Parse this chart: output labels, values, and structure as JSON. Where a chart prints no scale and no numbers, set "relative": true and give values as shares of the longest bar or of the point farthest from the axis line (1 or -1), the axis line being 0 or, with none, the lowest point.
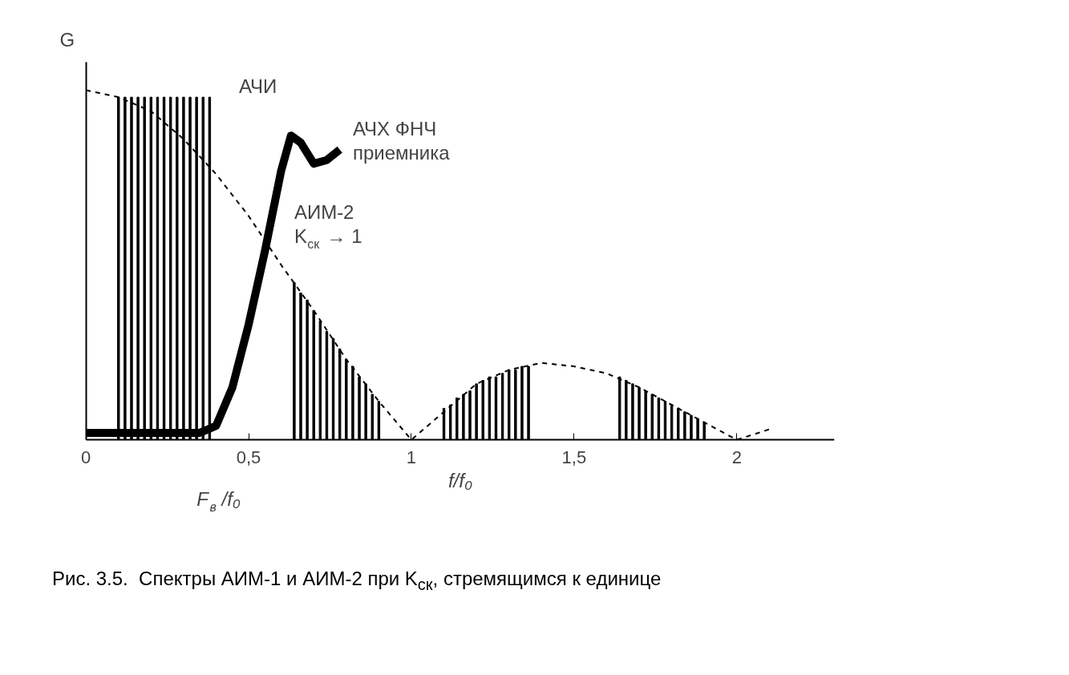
{
  "chart_data": {
    "type": "bar",
    "relative": true,
    "xlabel": "f/f₀",
    "ylabel": "G",
    "xlim": [
      0,
      2.3
    ],
    "xticks": [
      0,
      {
        "value": 0.5,
        "label": "0,5"
      },
      1,
      {
        "value": 1.5,
        "label": "1,5"
      },
      2
    ],
    "tick_labels": "x",
    "grid": false,
    "series": [
      {
        "color": "#000000",
        "x": [
          0.1,
          0.12,
          0.14,
          0.16,
          0.18,
          0.2,
          0.22,
          0.24,
          0.26,
          0.28,
          0.3,
          0.32,
          0.34,
          0.36,
          0.38,
          0.64,
          0.66,
          0.68,
          0.7,
          0.72,
          0.74,
          0.76,
          0.78,
          0.8,
          0.82,
          0.84,
          0.86,
          0.88,
          0.9,
          1.1,
          1.12,
          1.14,
          1.16,
          1.18,
          1.2,
          1.22,
          1.24,
          1.26,
          1.28,
          1.3,
          1.32,
          1.34,
          1.36,
          1.64,
          1.66,
          1.68,
          1.7,
          1.72,
          1.74,
          1.76,
          1.78,
          1.8,
          1.82,
          1.84,
          1.86,
          1.88,
          1.9
        ],
        "values": [
          0.98,
          0.98,
          0.98,
          0.98,
          0.98,
          0.98,
          0.98,
          0.98,
          0.98,
          0.98,
          0.98,
          0.98,
          0.98,
          0.98,
          0.98,
          0.45,
          0.42,
          0.4,
          0.37,
          0.34,
          0.31,
          0.29,
          0.26,
          0.23,
          0.21,
          0.18,
          0.16,
          0.13,
          0.11,
          0.09,
          0.1,
          0.12,
          0.13,
          0.14,
          0.16,
          0.17,
          0.18,
          0.18,
          0.19,
          0.2,
          0.2,
          0.21,
          0.21,
          0.18,
          0.17,
          0.16,
          0.15,
          0.14,
          0.13,
          0.12,
          0.11,
          0.1,
          0.09,
          0.08,
          0.07,
          0.06,
          0.05
        ]
      },
      {
        "type": "line",
        "line_style": "dashed",
        "color": "#000000",
        "x": [
          0,
          0.1,
          0.2,
          0.3,
          0.4,
          0.5,
          0.6,
          0.7,
          0.8,
          0.9,
          1.0,
          1.1,
          1.2,
          1.3,
          1.4,
          1.5,
          1.6,
          1.7,
          1.8,
          1.9,
          2.0,
          2.1
        ],
        "values": [
          1.0,
          0.98,
          0.94,
          0.86,
          0.76,
          0.64,
          0.5,
          0.37,
          0.23,
          0.11,
          0,
          0.08,
          0.16,
          0.2,
          0.22,
          0.21,
          0.19,
          0.15,
          0.1,
          0.05,
          0,
          0.03
        ]
      },
      {
        "type": "line",
        "line_style": "solid",
        "color": "#000000",
        "x": [
          0,
          0.35,
          0.4,
          0.45,
          0.5,
          0.55,
          0.6,
          0.63,
          0.66,
          0.7,
          0.74,
          0.78
        ],
        "values": [
          0.02,
          0.02,
          0.04,
          0.15,
          0.33,
          0.54,
          0.77,
          0.87,
          0.85,
          0.79,
          0.8,
          0.83
        ]
      }
    ],
    "annotations": [
      "АЧИ",
      "АЧХ ФНЧ\nприемника",
      "АИМ-2\nK$_{ск}$ → 1",
      "F$_{в}$ /f₀",
      "Рис. 3.5.  Спектры АИМ-1 и АИМ-2 при K$_{ск}$, стремящимся к единице"
    ]
  }
}
